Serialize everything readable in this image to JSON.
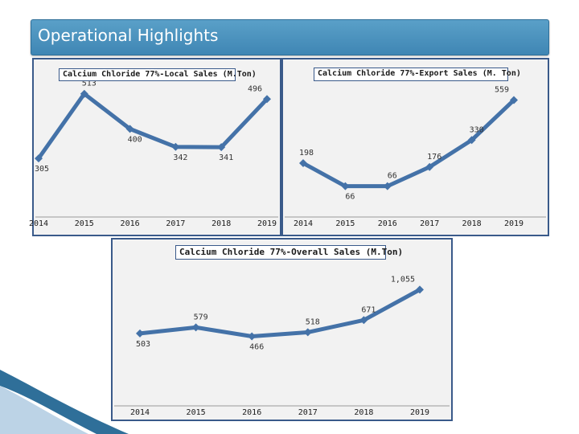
{
  "header": {
    "title": "Operational Highlights"
  },
  "chart_data": [
    {
      "type": "line",
      "title": "Calcium Chloride 77%-Local Sales (M.Ton)",
      "categories": [
        "2014",
        "2015",
        "2016",
        "2017",
        "2018",
        "2019"
      ],
      "values": [
        305,
        513,
        400,
        342,
        341,
        496
      ],
      "xlabel": "",
      "ylabel": "",
      "ylim": [
        300,
        520
      ]
    },
    {
      "type": "line",
      "title": "Calcium Chloride 77%-Export Sales (M. Ton)",
      "categories": [
        "2014",
        "2015",
        "2016",
        "2017",
        "2018",
        "2019"
      ],
      "values": [
        198,
        66,
        66,
        176,
        330,
        559
      ],
      "xlabel": "",
      "ylabel": "",
      "ylim": [
        0,
        580
      ]
    },
    {
      "type": "line",
      "title": "Calcium Chloride 77%-Overall Sales (M.Ton)",
      "categories": [
        "2014",
        "2015",
        "2016",
        "2017",
        "2018",
        "2019"
      ],
      "values": [
        503,
        579,
        466,
        518,
        671,
        1055
      ],
      "value_labels": [
        "503",
        "579",
        "466",
        "518",
        "671",
        "1,055"
      ],
      "xlabel": "",
      "ylabel": "",
      "ylim": [
        380,
        1120
      ]
    }
  ]
}
